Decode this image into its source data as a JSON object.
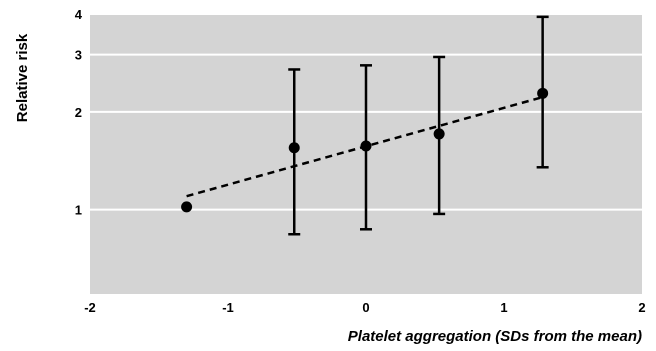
{
  "chart_data": {
    "type": "scatter",
    "title": "",
    "xlabel": "Platelet aggregation (SDs from the mean)",
    "ylabel": "Relative risk",
    "xlim": [
      -2,
      2
    ],
    "ylim": [
      0.55,
      4
    ],
    "y_scale": "log",
    "x_ticks": [
      "-2",
      "-1",
      "0",
      "1",
      "2"
    ],
    "y_ticks": [
      "1",
      "2",
      "3",
      "4"
    ],
    "grid": "horizontal",
    "background": "#d4d4d4",
    "points": [
      {
        "x": -1.3,
        "y": 1.02
      },
      {
        "x": -0.52,
        "y": 1.55,
        "ci_low": 0.84,
        "ci_high": 2.7
      },
      {
        "x": 0.0,
        "y": 1.57,
        "ci_low": 0.87,
        "ci_high": 2.78
      },
      {
        "x": 0.53,
        "y": 1.71,
        "ci_low": 0.97,
        "ci_high": 2.95
      },
      {
        "x": 1.28,
        "y": 2.28,
        "ci_low": 1.35,
        "ci_high": 3.92
      }
    ],
    "trend_line": {
      "style": "dashed",
      "x": [
        -1.3,
        1.28
      ],
      "y": [
        1.1,
        2.22
      ]
    }
  }
}
